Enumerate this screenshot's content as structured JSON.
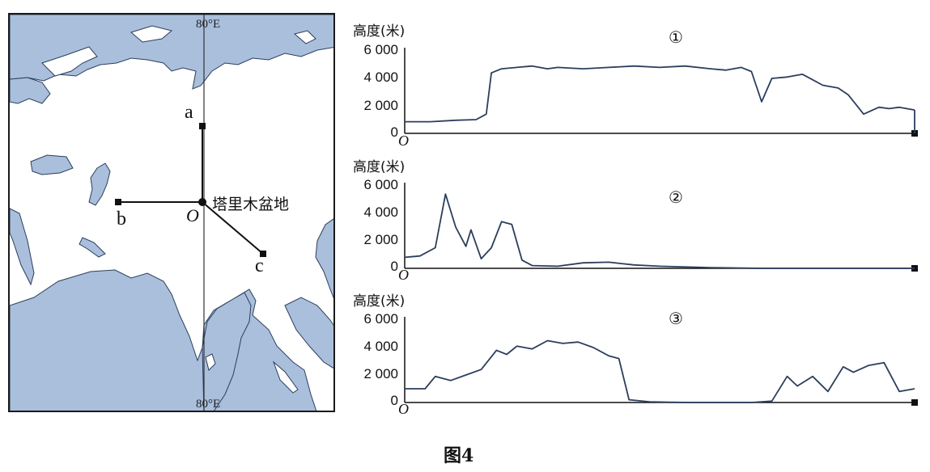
{
  "figure_caption": "图4",
  "map": {
    "lon_top": "80°E",
    "lon_bottom": "80°E",
    "point_a": "a",
    "point_b": "b",
    "point_c": "c",
    "origin": "O",
    "basin_label": "塔里木盆地",
    "sea_color": "#a9bfdc",
    "land_color": "#ffffff"
  },
  "profiles": [
    {
      "marker": "①",
      "ylabel": "高度(米)",
      "ticks": [
        "6 000",
        "4 000",
        "2 000",
        "0"
      ],
      "origin": "O",
      "ylim": [
        0,
        6000
      ],
      "x": [
        0,
        0.05,
        0.1,
        0.14,
        0.16,
        0.17,
        0.19,
        0.22,
        0.25,
        0.28,
        0.3,
        0.35,
        0.4,
        0.45,
        0.5,
        0.55,
        0.6,
        0.63,
        0.66,
        0.68,
        0.7,
        0.72,
        0.75,
        0.78,
        0.8,
        0.82,
        0.85,
        0.87,
        0.9,
        0.93,
        0.95,
        0.97,
        1.0
      ],
      "values": [
        850,
        850,
        950,
        1000,
        1400,
        4400,
        4700,
        4800,
        4900,
        4700,
        4800,
        4700,
        4800,
        4900,
        4800,
        4900,
        4700,
        4600,
        4800,
        4500,
        2300,
        4000,
        4100,
        4300,
        3900,
        3500,
        3300,
        2800,
        1400,
        1900,
        1800,
        1900,
        1700
      ]
    },
    {
      "marker": "②",
      "ylabel": "高度(米)",
      "ticks": [
        "6 000",
        "4 000",
        "2 000",
        "0"
      ],
      "origin": "O",
      "ylim": [
        0,
        6000
      ],
      "x": [
        0,
        0.03,
        0.06,
        0.08,
        0.1,
        0.12,
        0.13,
        0.15,
        0.17,
        0.19,
        0.21,
        0.23,
        0.25,
        0.3,
        0.35,
        0.4,
        0.45,
        0.5,
        0.6,
        0.7,
        1.0
      ],
      "values": [
        800,
        900,
        1500,
        5400,
        3000,
        1600,
        2800,
        700,
        1500,
        3400,
        3200,
        600,
        200,
        150,
        400,
        450,
        250,
        150,
        50,
        0,
        0
      ]
    },
    {
      "marker": "③",
      "ylabel": "高度(米)",
      "ticks": [
        "6 000",
        "4 000",
        "2 000",
        "0"
      ],
      "origin": "O",
      "ylim": [
        0,
        6000
      ],
      "x": [
        0,
        0.04,
        0.06,
        0.09,
        0.12,
        0.15,
        0.18,
        0.2,
        0.22,
        0.25,
        0.28,
        0.31,
        0.34,
        0.37,
        0.4,
        0.42,
        0.44,
        0.48,
        0.52,
        0.56,
        0.6,
        0.64,
        0.68,
        0.72,
        0.75,
        0.77,
        0.8,
        0.83,
        0.86,
        0.88,
        0.91,
        0.94,
        0.97,
        1.0
      ],
      "values": [
        1000,
        1000,
        1900,
        1600,
        2000,
        2400,
        3800,
        3500,
        4100,
        3900,
        4500,
        4300,
        4400,
        4000,
        3400,
        3200,
        200,
        50,
        20,
        0,
        0,
        0,
        0,
        100,
        1900,
        1200,
        1900,
        800,
        2600,
        2200,
        2700,
        2900,
        800,
        1000
      ]
    }
  ]
}
